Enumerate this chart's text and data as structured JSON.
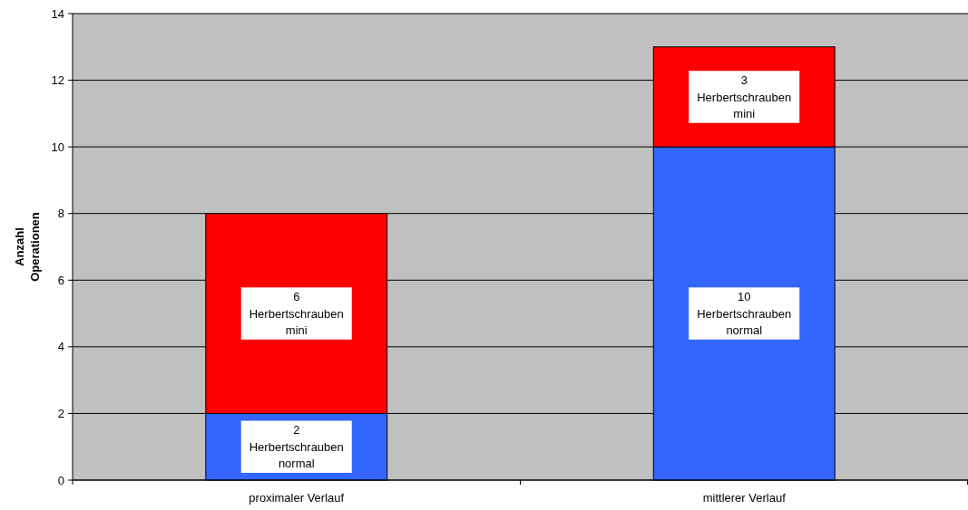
{
  "chart_data": {
    "type": "bar",
    "ylabel": "Anzahl Operationen",
    "categories": [
      "proximaler Verlauf",
      "mittlerer Verlauf"
    ],
    "stacked": true,
    "data_labels": true,
    "grid": "y",
    "ylim": [
      0,
      14
    ],
    "yticks": [
      0,
      2,
      4,
      6,
      8,
      10,
      12,
      14
    ],
    "series": [
      {
        "name": "Herbertschrauben normal",
        "color": "#3366ff",
        "values": [
          2,
          10
        ]
      },
      {
        "name": "Herbertschrauben mini",
        "color": "#ff0000",
        "values": [
          6,
          3
        ]
      }
    ]
  }
}
